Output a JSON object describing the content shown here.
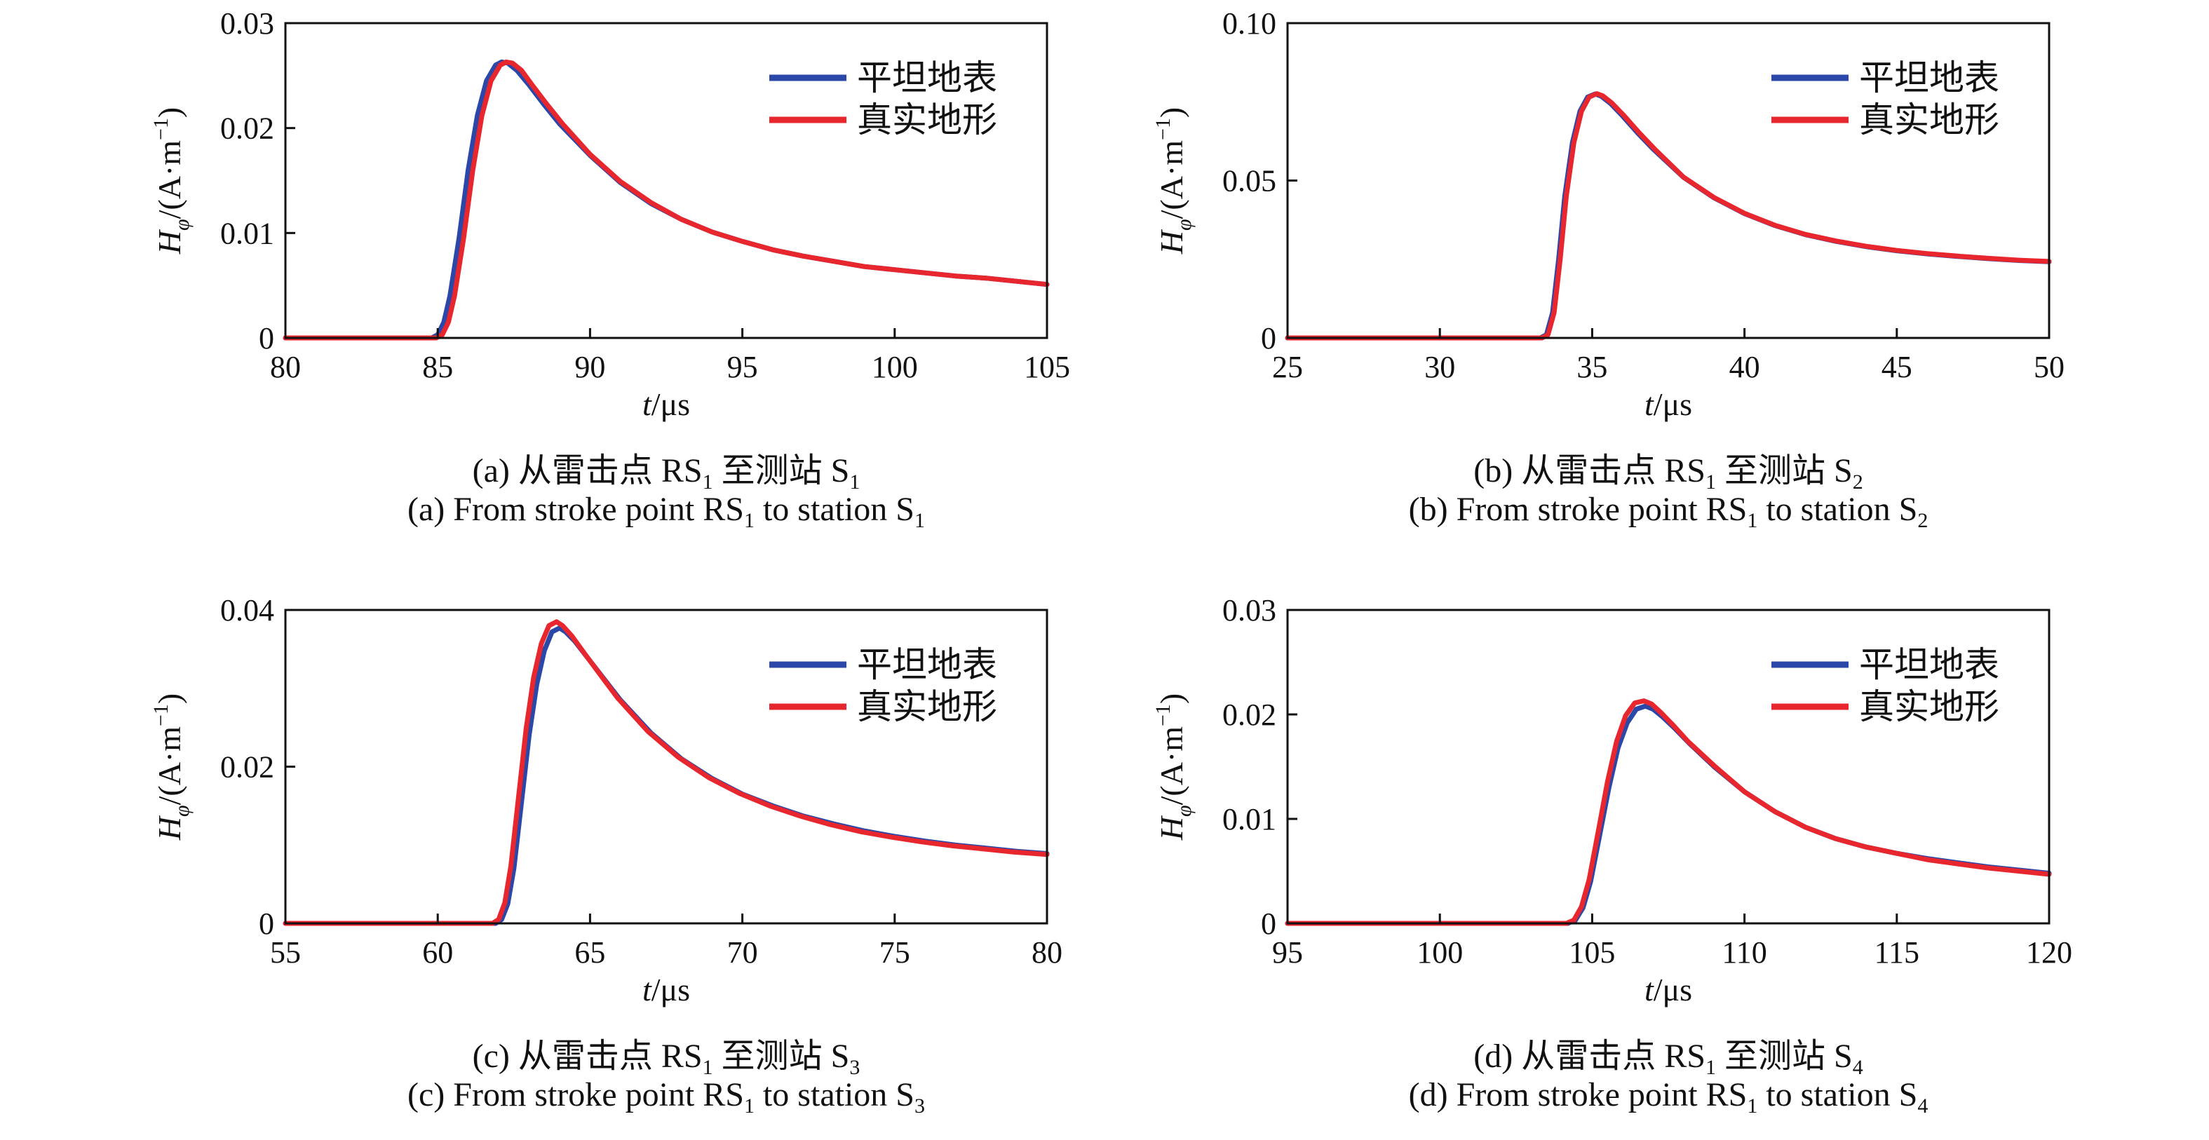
{
  "colors": {
    "flat": "#2b47a8",
    "real": "#e8262e"
  },
  "legend": [
    "平坦地表",
    "真实地形"
  ],
  "chart_data": [
    {
      "type": "line",
      "caption_cn": {
        "main": "(a) 从雷击点 RS",
        "sub1": "1",
        "mid": " 至测站 S",
        "sub2": "1"
      },
      "caption_en": {
        "main": "(a) From stroke point RS",
        "sub1": "1",
        "mid": " to station S",
        "sub2": "1"
      },
      "xlabel": {
        "var": "t",
        "unit": "/μs"
      },
      "ylabel": {
        "var": "H",
        "sub": "φ",
        "unit": "/(A·m",
        "sup": "−1",
        "close": ")"
      },
      "xlim": [
        80,
        105
      ],
      "ylim": [
        0,
        0.03
      ],
      "xticks": [
        "80",
        "85",
        "90",
        "95",
        "100",
        "105"
      ],
      "yticks": [
        "0",
        "0.01",
        "0.02",
        "0.03"
      ],
      "series": [
        {
          "name": "平坦地表",
          "x": [
            80,
            84.8,
            85.0,
            85.2,
            85.4,
            85.7,
            86.0,
            86.3,
            86.6,
            86.9,
            87.1,
            87.3,
            87.6,
            88.0,
            88.5,
            89.0,
            90.0,
            91.0,
            92.0,
            93.0,
            94.0,
            95.0,
            96.0,
            97.0,
            98.0,
            99.0,
            100.0,
            101.0,
            102.0,
            103.0,
            104.0,
            105.0
          ],
          "y": [
            0,
            0,
            0.0003,
            0.0015,
            0.004,
            0.0095,
            0.016,
            0.0212,
            0.0245,
            0.026,
            0.0263,
            0.0262,
            0.0255,
            0.0241,
            0.0222,
            0.0204,
            0.0174,
            0.0148,
            0.0128,
            0.0113,
            0.0101,
            0.0092,
            0.0084,
            0.0078,
            0.0073,
            0.0068,
            0.0065,
            0.0062,
            0.0059,
            0.0057,
            0.0054,
            0.0051
          ]
        },
        {
          "name": "真实地形",
          "x": [
            80,
            84.95,
            85.15,
            85.35,
            85.55,
            85.85,
            86.15,
            86.45,
            86.75,
            87.05,
            87.25,
            87.45,
            87.75,
            88.1,
            88.6,
            89.1,
            90.0,
            91.0,
            92.0,
            93.0,
            94.0,
            95.0,
            96.0,
            97.0,
            98.0,
            99.0,
            100.0,
            101.0,
            102.0,
            103.0,
            104.0,
            105.0
          ],
          "y": [
            0,
            0,
            0.0003,
            0.0015,
            0.004,
            0.0095,
            0.016,
            0.0212,
            0.0245,
            0.026,
            0.0263,
            0.0262,
            0.0255,
            0.0241,
            0.0222,
            0.0204,
            0.0175,
            0.0149,
            0.0129,
            0.0113,
            0.0101,
            0.0092,
            0.0084,
            0.0078,
            0.0073,
            0.0068,
            0.0065,
            0.0062,
            0.0059,
            0.0057,
            0.0054,
            0.0051
          ]
        }
      ]
    },
    {
      "type": "line",
      "caption_cn": {
        "main": "(b) 从雷击点 RS",
        "sub1": "1",
        "mid": " 至测站 S",
        "sub2": "2"
      },
      "caption_en": {
        "main": "(b) From stroke point RS",
        "sub1": "1",
        "mid": " to station S",
        "sub2": "2"
      },
      "xlabel": {
        "var": "t",
        "unit": "/μs"
      },
      "ylabel": {
        "var": "H",
        "sub": "φ",
        "unit": "/(A·m",
        "sup": "−1",
        "close": ")"
      },
      "xlim": [
        25,
        50
      ],
      "ylim": [
        0,
        0.1
      ],
      "xticks": [
        "25",
        "30",
        "35",
        "40",
        "45",
        "50"
      ],
      "yticks": [
        "0",
        "0.05",
        "0.10"
      ],
      "series": [
        {
          "name": "平坦地表",
          "x": [
            25,
            33.3,
            33.5,
            33.7,
            33.9,
            34.1,
            34.35,
            34.6,
            34.85,
            35.1,
            35.3,
            35.6,
            36.0,
            36.5,
            37.0,
            38.0,
            39.0,
            40.0,
            41.0,
            42.0,
            43.0,
            44.0,
            45.0,
            46.0,
            47.0,
            48.0,
            49.0,
            50.0
          ],
          "y": [
            0,
            0,
            0.001,
            0.008,
            0.025,
            0.045,
            0.062,
            0.072,
            0.0765,
            0.0775,
            0.0768,
            0.0745,
            0.0705,
            0.065,
            0.06,
            0.051,
            0.0445,
            0.0395,
            0.0357,
            0.0328,
            0.0307,
            0.029,
            0.0277,
            0.0267,
            0.0259,
            0.0252,
            0.0246,
            0.0242
          ]
        },
        {
          "name": "真实地形",
          "x": [
            25,
            33.35,
            33.55,
            33.75,
            33.95,
            34.15,
            34.4,
            34.65,
            34.9,
            35.15,
            35.35,
            35.65,
            36.05,
            36.55,
            37.05,
            38.0,
            39.0,
            40.0,
            41.0,
            42.0,
            43.0,
            44.0,
            45.0,
            46.0,
            47.0,
            48.0,
            49.0,
            50.0
          ],
          "y": [
            0,
            0,
            0.001,
            0.008,
            0.025,
            0.045,
            0.062,
            0.072,
            0.0765,
            0.0776,
            0.0769,
            0.0746,
            0.0706,
            0.0651,
            0.06,
            0.0511,
            0.0446,
            0.0396,
            0.0358,
            0.0329,
            0.0308,
            0.0291,
            0.0278,
            0.0268,
            0.026,
            0.0253,
            0.0247,
            0.0243
          ]
        }
      ]
    },
    {
      "type": "line",
      "caption_cn": {
        "main": "(c) 从雷击点 RS",
        "sub1": "1",
        "mid": " 至测站 S",
        "sub2": "3"
      },
      "caption_en": {
        "main": "(c) From stroke point RS",
        "sub1": "1",
        "mid": " to station S",
        "sub2": "3"
      },
      "xlabel": {
        "var": "t",
        "unit": "/μs"
      },
      "ylabel": {
        "var": "H",
        "sub": "φ",
        "unit": "/(A·m",
        "sup": "−1",
        "close": ")"
      },
      "xlim": [
        55,
        80
      ],
      "ylim": [
        0,
        0.04
      ],
      "xticks": [
        "55",
        "60",
        "65",
        "70",
        "75",
        "80"
      ],
      "yticks": [
        "0",
        "0.02",
        "0.04"
      ],
      "series": [
        {
          "name": "平坦地表",
          "x": [
            55,
            61.9,
            62.1,
            62.3,
            62.5,
            62.75,
            63.0,
            63.25,
            63.5,
            63.75,
            64.0,
            64.2,
            64.5,
            65.0,
            65.5,
            66.0,
            67.0,
            68.0,
            69.0,
            70.0,
            71.0,
            72.0,
            73.0,
            74.0,
            75.0,
            76.0,
            77.0,
            78.0,
            79.0,
            80.0
          ],
          "y": [
            0,
            0,
            0.0005,
            0.0025,
            0.007,
            0.0155,
            0.024,
            0.0305,
            0.0348,
            0.0372,
            0.0377,
            0.0372,
            0.036,
            0.0335,
            0.031,
            0.0285,
            0.0243,
            0.021,
            0.0185,
            0.0165,
            0.015,
            0.0137,
            0.0127,
            0.0118,
            0.0111,
            0.0105,
            0.01,
            0.0096,
            0.0092,
            0.0089
          ]
        },
        {
          "name": "真实地形",
          "x": [
            55,
            61.8,
            62.0,
            62.2,
            62.4,
            62.65,
            62.9,
            63.15,
            63.4,
            63.65,
            63.9,
            64.1,
            64.4,
            64.9,
            65.4,
            65.9,
            66.9,
            67.9,
            68.9,
            69.9,
            70.9,
            71.9,
            72.9,
            73.9,
            74.9,
            75.9,
            76.9,
            77.9,
            78.9,
            80.0
          ],
          "y": [
            0,
            0,
            0.0005,
            0.0026,
            0.0073,
            0.016,
            0.0248,
            0.0314,
            0.0357,
            0.038,
            0.0385,
            0.038,
            0.0367,
            0.034,
            0.0314,
            0.0288,
            0.0245,
            0.0212,
            0.0186,
            0.0166,
            0.015,
            0.0137,
            0.0126,
            0.0117,
            0.011,
            0.0104,
            0.0099,
            0.0095,
            0.0091,
            0.0088
          ]
        }
      ]
    },
    {
      "type": "line",
      "caption_cn": {
        "main": "(d) 从雷击点 RS",
        "sub1": "1",
        "mid": " 至测站 S",
        "sub2": "4"
      },
      "caption_en": {
        "main": "(d) From stroke point RS",
        "sub1": "1",
        "mid": " to station S",
        "sub2": "4"
      },
      "xlabel": {
        "var": "t",
        "unit": "/μs"
      },
      "ylabel": {
        "var": "H",
        "sub": "φ",
        "unit": "/(A·m",
        "sup": "−1",
        "close": ")"
      },
      "xlim": [
        95,
        120
      ],
      "ylim": [
        0,
        0.03
      ],
      "xticks": [
        "95",
        "100",
        "105",
        "110",
        "115",
        "120"
      ],
      "yticks": [
        "0",
        "0.01",
        "0.02",
        "0.03"
      ],
      "series": [
        {
          "name": "平坦地表",
          "x": [
            95,
            104.2,
            104.45,
            104.7,
            104.95,
            105.25,
            105.55,
            105.85,
            106.15,
            106.45,
            106.75,
            107.0,
            107.3,
            107.7,
            108.2,
            109.0,
            110.0,
            111.0,
            112.0,
            113.0,
            114.0,
            115.0,
            116.0,
            117.0,
            118.0,
            119.0,
            120.0
          ],
          "y": [
            0,
            0,
            0.0003,
            0.0015,
            0.004,
            0.0085,
            0.013,
            0.0168,
            0.0192,
            0.0205,
            0.0208,
            0.0205,
            0.0198,
            0.0187,
            0.0172,
            0.015,
            0.0126,
            0.0107,
            0.0092,
            0.0081,
            0.0073,
            0.0067,
            0.0062,
            0.0058,
            0.0054,
            0.0051,
            0.0048
          ]
        },
        {
          "name": "真实地形",
          "x": [
            95,
            104.15,
            104.4,
            104.65,
            104.9,
            105.2,
            105.5,
            105.8,
            106.1,
            106.4,
            106.7,
            106.95,
            107.25,
            107.65,
            108.15,
            109.0,
            110.0,
            111.0,
            112.0,
            113.0,
            114.0,
            115.0,
            116.0,
            117.0,
            118.0,
            119.0,
            120.0
          ],
          "y": [
            0,
            0,
            0.0003,
            0.0016,
            0.0042,
            0.0088,
            0.0135,
            0.0174,
            0.0199,
            0.0211,
            0.0213,
            0.021,
            0.0202,
            0.019,
            0.0174,
            0.0151,
            0.0126,
            0.0107,
            0.0092,
            0.0081,
            0.0073,
            0.0067,
            0.0061,
            0.0057,
            0.0053,
            0.005,
            0.0047
          ]
        }
      ]
    }
  ]
}
